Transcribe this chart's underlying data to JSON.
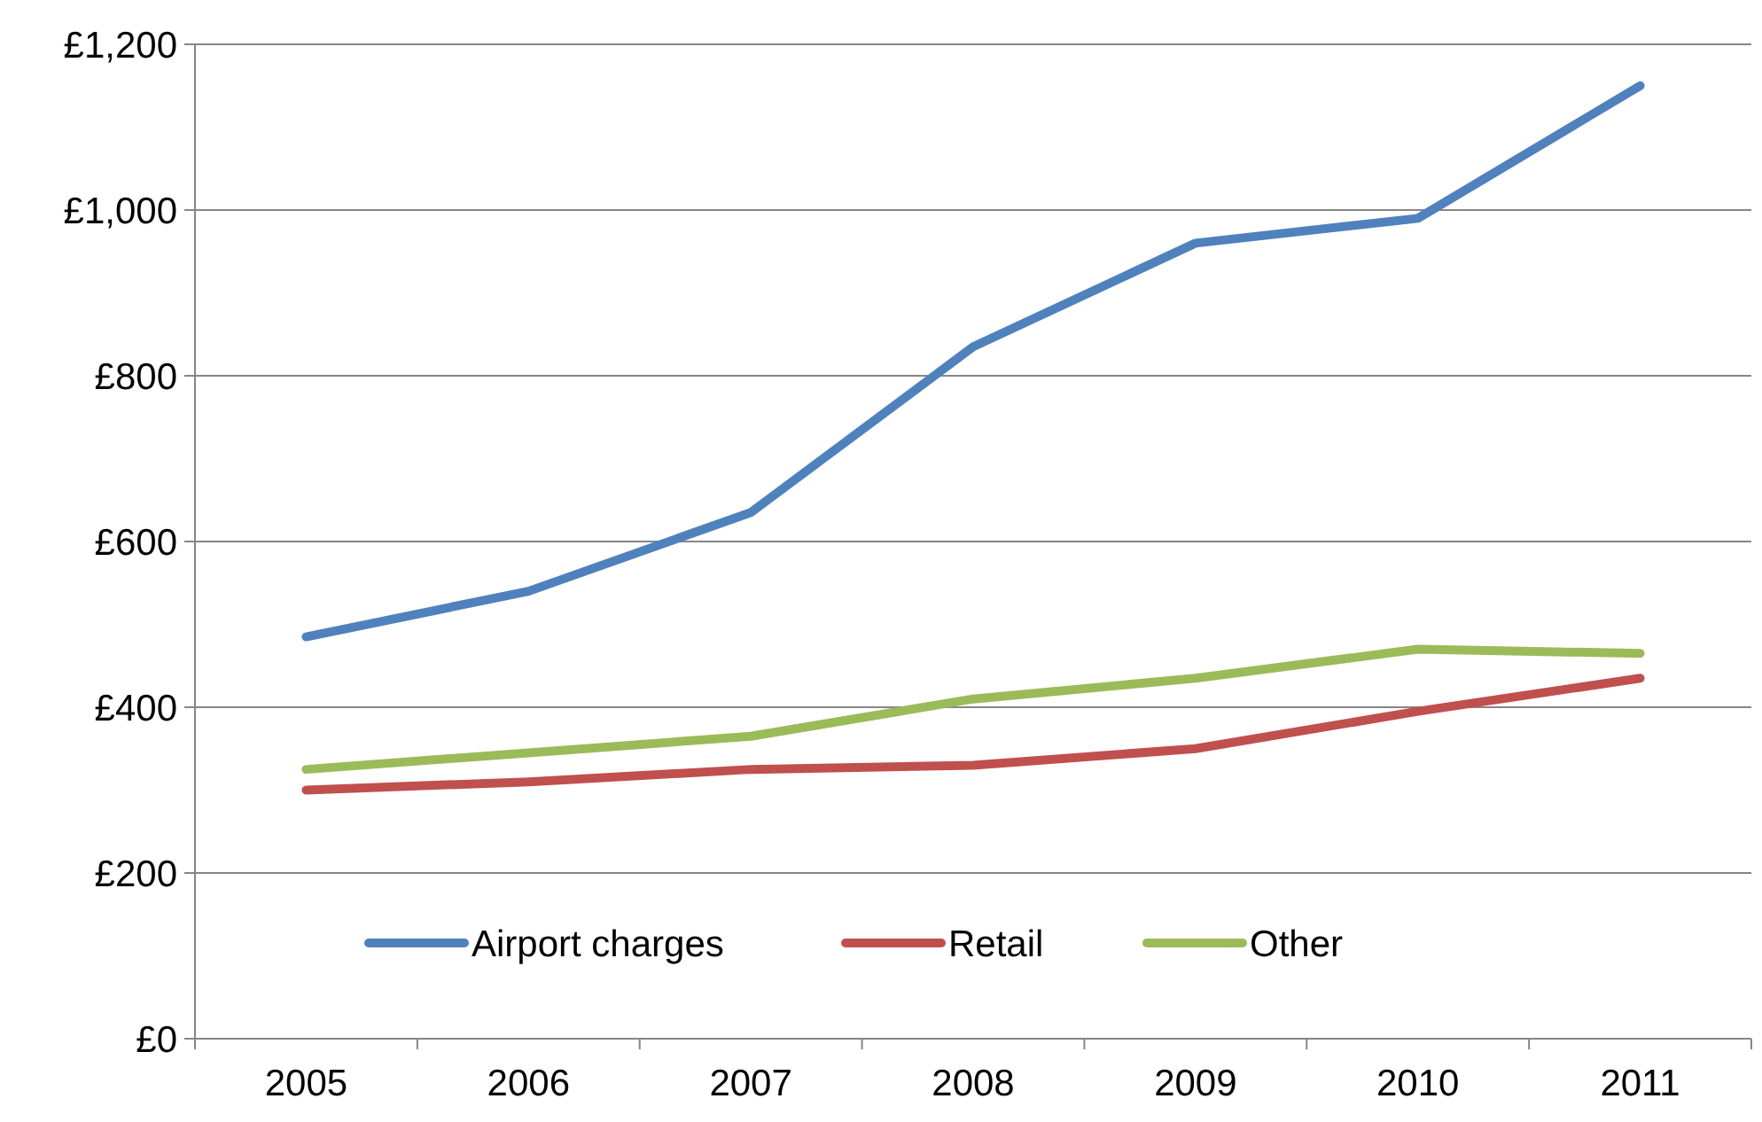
{
  "chart_data": {
    "type": "line",
    "categories": [
      "2005",
      "2006",
      "2007",
      "2008",
      "2009",
      "2010",
      "2011"
    ],
    "series": [
      {
        "name": "Airport charges",
        "color": "#4f81bd",
        "values": [
          485,
          540,
          635,
          835,
          960,
          990,
          1150
        ]
      },
      {
        "name": "Retail",
        "color": "#c0504d",
        "values": [
          300,
          310,
          325,
          330,
          350,
          395,
          435
        ]
      },
      {
        "name": "Other",
        "color": "#9bbb59",
        "values": [
          325,
          345,
          365,
          410,
          435,
          470,
          465
        ]
      }
    ],
    "ylim": [
      0,
      1200
    ],
    "yticks": [
      {
        "value": 0,
        "label": "£0"
      },
      {
        "value": 200,
        "label": "£200"
      },
      {
        "value": 400,
        "label": "£400"
      },
      {
        "value": 600,
        "label": "£600"
      },
      {
        "value": 800,
        "label": "£800"
      },
      {
        "value": 1000,
        "label": "£1,000"
      },
      {
        "value": 1200,
        "label": "£1,200"
      }
    ],
    "grid": "y",
    "legend": "bottom",
    "marker": "none",
    "line_style": "solid"
  }
}
